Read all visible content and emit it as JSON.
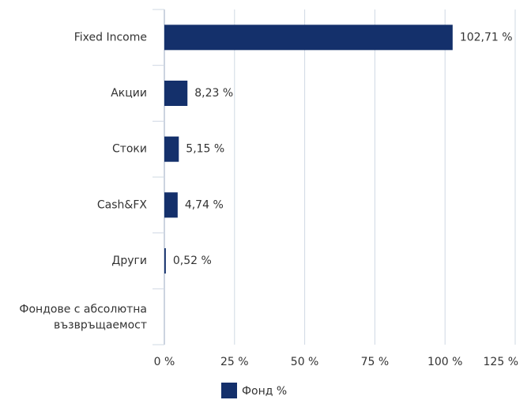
{
  "chart_data": {
    "type": "hbar",
    "categories": [
      "Fixed Income",
      "Акции",
      "Стоки",
      "Cash&FX",
      "Други",
      "Фондове с абсолютна възвръщаемост"
    ],
    "series": [
      {
        "name": "Фонд %",
        "color": "#14306b",
        "values": [
          102.71,
          8.23,
          5.15,
          4.74,
          0.52,
          null
        ],
        "value_labels": [
          "102,71 %",
          "8,23 %",
          "5,15 %",
          "4,74 %",
          "0,52 %",
          null
        ]
      }
    ],
    "xlim": [
      0,
      125
    ],
    "xticks": [
      {
        "value": 0,
        "label": "0 %"
      },
      {
        "value": 25,
        "label": "25 %"
      },
      {
        "value": 50,
        "label": "50 %"
      },
      {
        "value": 75,
        "label": "75 %"
      },
      {
        "value": 100,
        "label": "100 %"
      },
      {
        "value": 125,
        "label": "125 %"
      }
    ],
    "grid": true,
    "legend": "bottom"
  }
}
